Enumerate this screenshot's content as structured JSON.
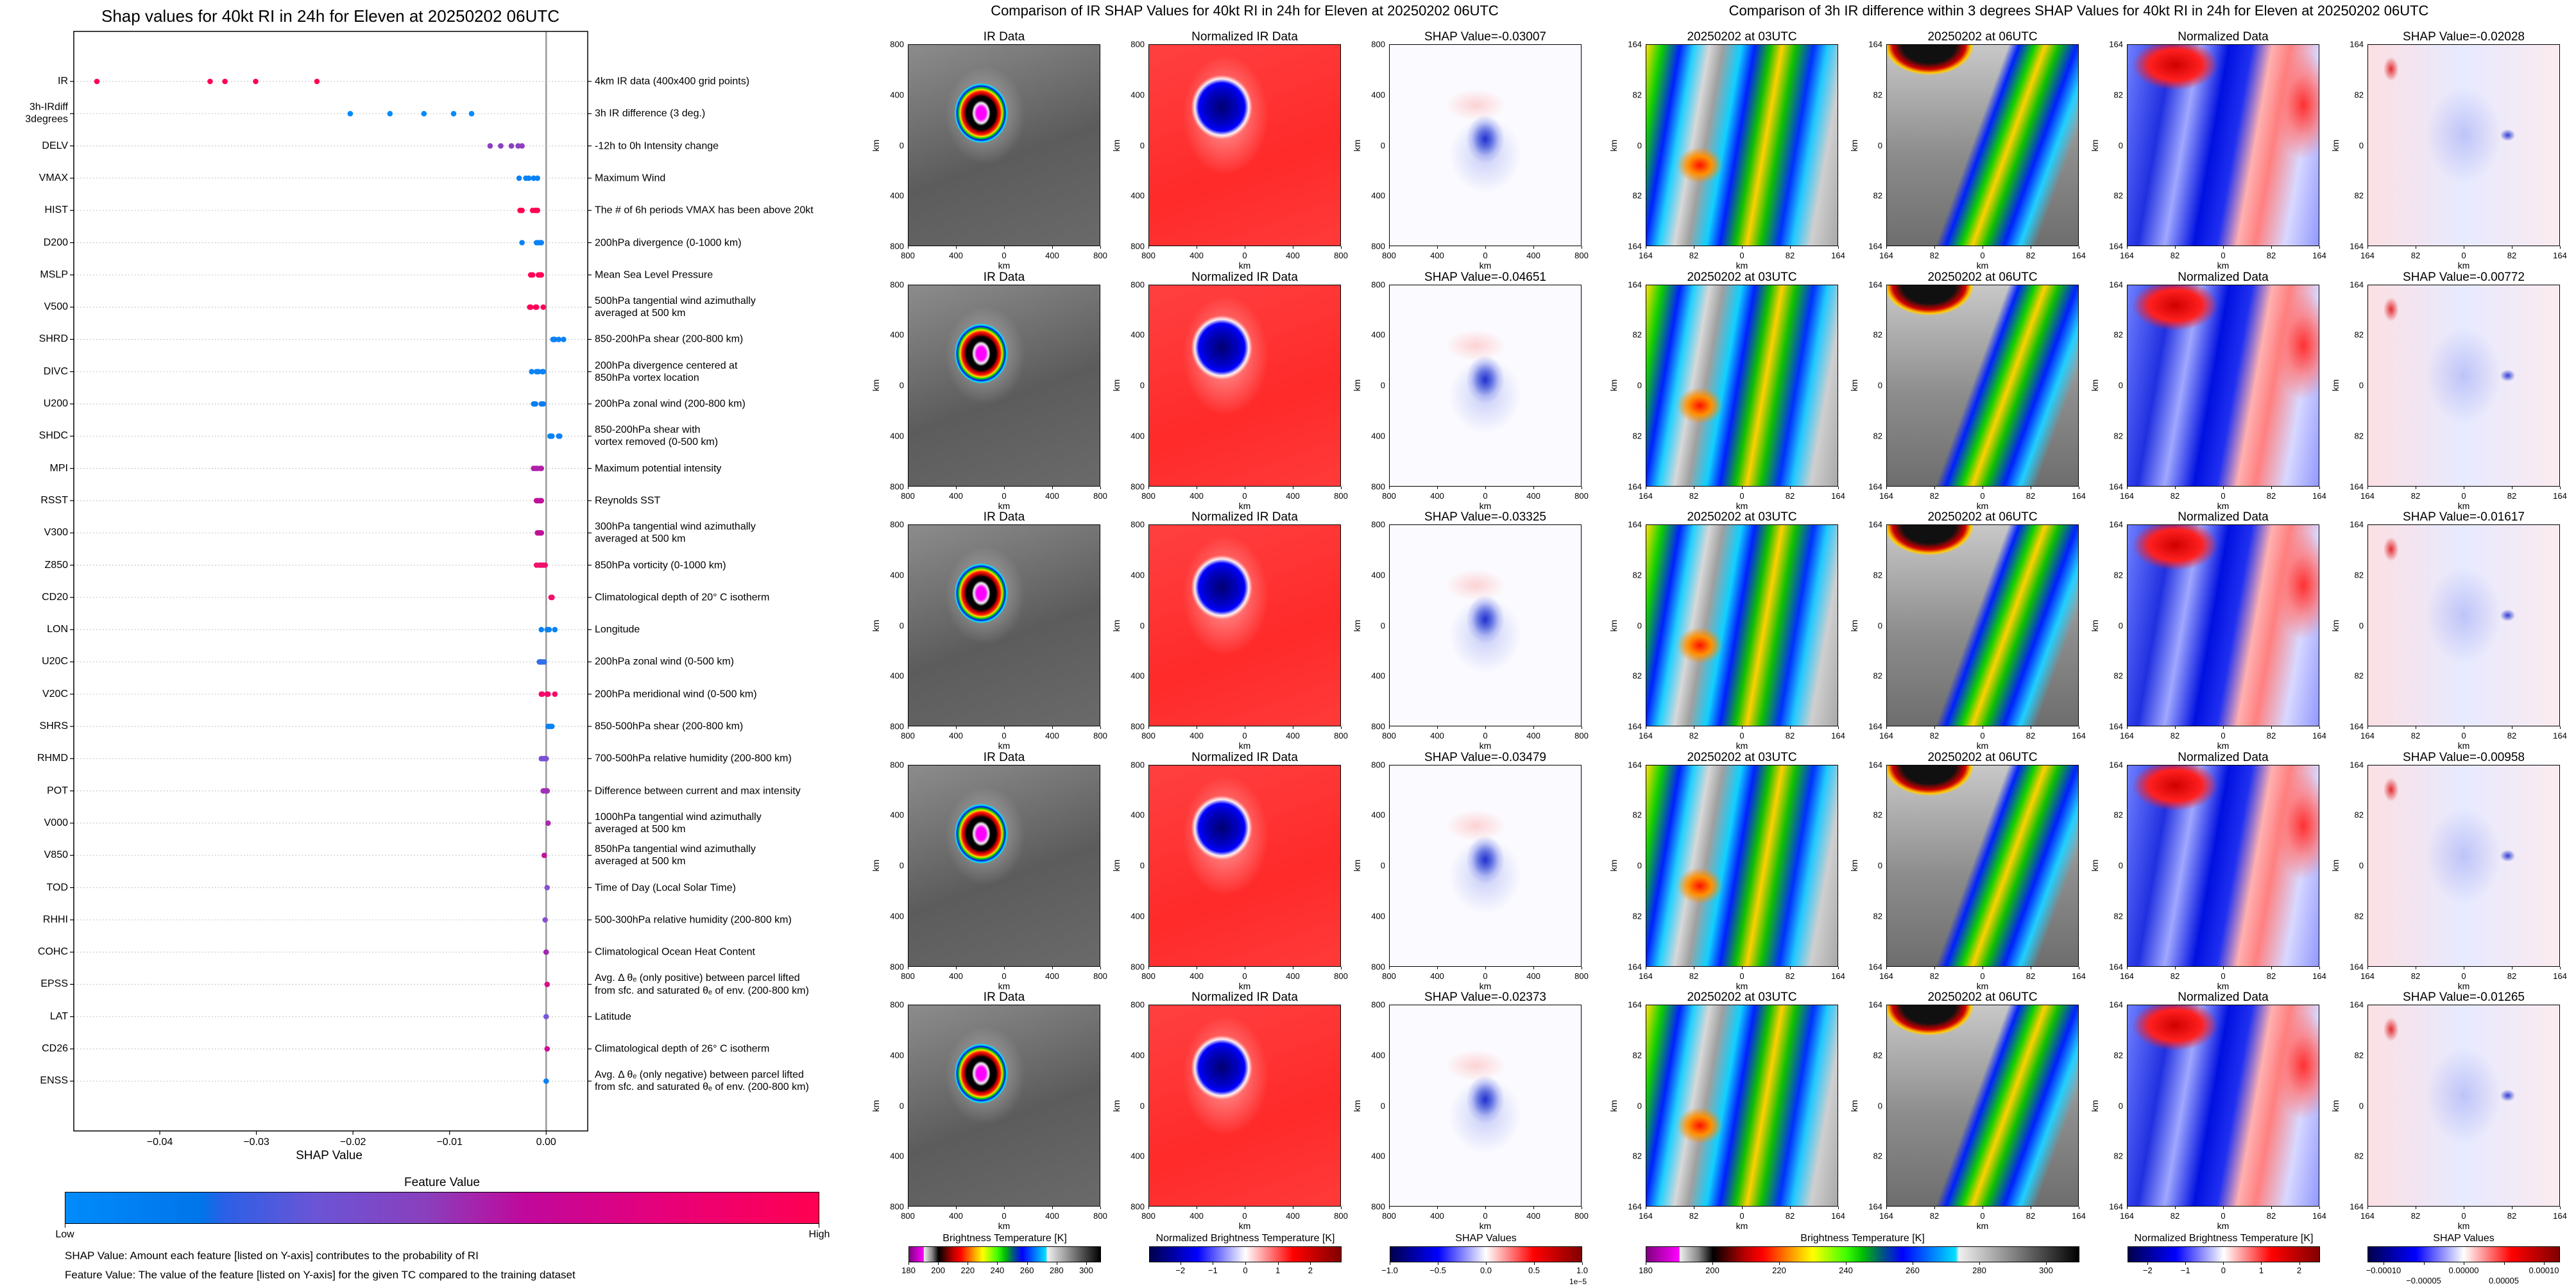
{
  "chart_data": {
    "type": "scatter",
    "title": "Shap values for 40kt RI in 24h for Eleven at 20250202 06UTC",
    "xlabel": "SHAP Value",
    "xlim": [
      -0.0489,
      0.0043
    ],
    "xticks": [
      -0.04,
      -0.03,
      -0.02,
      -0.01,
      0.0
    ],
    "xtick_labels": [
      "−0.04",
      "−0.03",
      "−0.02",
      "−0.01",
      "0.00"
    ],
    "grid": "dotted horizontal per feature",
    "zero_line": 0.0,
    "features": [
      {
        "name": "IR",
        "description": "4km IR data (400x400 grid points)",
        "color": "#ff0052",
        "values": [
          -0.04651,
          -0.03479,
          -0.03325,
          -0.03007,
          -0.02373
        ]
      },
      {
        "name": "3h-IRdiff\n3degrees",
        "description": "3h IR difference (3 deg.)",
        "color": "#008bfb",
        "values": [
          -0.02028,
          -0.01617,
          -0.01265,
          -0.00958,
          -0.00772
        ]
      },
      {
        "name": "DELV",
        "description": "-12h to 0h Intensity change",
        "color": "#8b3fc0",
        "values": [
          -0.0058,
          -0.0047,
          -0.0036,
          -0.0029,
          -0.0025
        ]
      },
      {
        "name": "VMAX",
        "description": "Maximum Wind",
        "color": "#0a82f5",
        "values": [
          -0.0028,
          -0.0021,
          -0.0018,
          -0.0013,
          -0.0009
        ]
      },
      {
        "name": "HIST",
        "description": "The # of 6h periods VMAX has been above 20kt",
        "color": "#ff0052",
        "values": [
          -0.0027,
          -0.0025,
          -0.0014,
          -0.0011,
          -0.0009
        ]
      },
      {
        "name": "D200",
        "description": "200hPa divergence (0-1000 km)",
        "color": "#0a82f5",
        "values": [
          -0.0025,
          -0.001,
          -0.0008,
          -0.0006,
          -0.0005
        ]
      },
      {
        "name": "MSLP",
        "description": "Mean Sea Level Pressure",
        "color": "#ff0056",
        "values": [
          -0.0016,
          -0.0014,
          -0.0008,
          -0.0006,
          -0.0005
        ]
      },
      {
        "name": "V500",
        "description": "500hPa tangential wind azimuthally\naveraged at 500 km",
        "color": "#ff0058",
        "values": [
          -0.0017,
          -0.0016,
          -0.0011,
          -0.001,
          -0.0003
        ]
      },
      {
        "name": "SHRD",
        "description": "850-200hPa shear (200-800 km)",
        "color": "#0a82f5",
        "values": [
          0.0007,
          0.0008,
          0.0009,
          0.0013,
          0.0018
        ]
      },
      {
        "name": "DIVC",
        "description": "200hPa divergence centered at\n850hPa vortex location",
        "color": "#0a82f5",
        "values": [
          -0.0015,
          -0.001,
          -0.0008,
          -0.0004,
          -0.0003
        ]
      },
      {
        "name": "U200",
        "description": "200hPa zonal wind (200-800 km)",
        "color": "#0a7ef0",
        "values": [
          -0.0013,
          -0.0012,
          -0.0011,
          -0.0005,
          -0.0003
        ]
      },
      {
        "name": "SHDC",
        "description": "850-200hPa shear with\nvortex removed (0-500 km)",
        "color": "#0a82f5",
        "values": [
          0.0004,
          0.0005,
          0.0006,
          0.0013,
          0.0014
        ]
      },
      {
        "name": "MPI",
        "description": "Maximum potential intensity",
        "color": "#b01fa8",
        "values": [
          -0.0013,
          -0.0011,
          -0.0009,
          -0.0006,
          -0.0005
        ]
      },
      {
        "name": "RSST",
        "description": "Reynolds SST",
        "color": "#c0109a",
        "values": [
          -0.001,
          -0.0009,
          -0.0007,
          -0.0006,
          -0.0005
        ]
      },
      {
        "name": "V300",
        "description": "300hPa tangential wind azimuthally\naveraged at 500 km",
        "color": "#c0109a",
        "values": [
          -0.0009,
          -0.0008,
          -0.0007,
          -0.0006,
          -0.0005
        ]
      },
      {
        "name": "Z850",
        "description": "850hPa vorticity (0-1000 km)",
        "color": "#f0106a",
        "values": [
          -0.001,
          -0.0007,
          -0.0005,
          -0.0003,
          -0.0001
        ]
      },
      {
        "name": "CD20",
        "description": "Climatological depth of 20° C isotherm",
        "color": "#f0106a",
        "values": [
          0.0005,
          0.0006,
          0.0006,
          0.0006,
          0.0006
        ]
      },
      {
        "name": "LON",
        "description": "Longitude",
        "color": "#0a82f5",
        "values": [
          -0.0005,
          0.0001,
          0.0002,
          0.0003,
          0.0009
        ]
      },
      {
        "name": "U20C",
        "description": "200hPa zonal wind (0-500 km)",
        "color": "#3070e8",
        "values": [
          -0.0007,
          -0.0006,
          -0.0005,
          -0.0004,
          -0.0002
        ]
      },
      {
        "name": "V20C",
        "description": "200hPa meridional wind (0-500 km)",
        "color": "#f8086a",
        "values": [
          -0.0005,
          -0.0004,
          0.0001,
          0.0002,
          0.0009
        ]
      },
      {
        "name": "SHRS",
        "description": "850-500hPa shear (200-800 km)",
        "color": "#0a82f5",
        "values": [
          0.0002,
          0.0003,
          0.0004,
          0.0005,
          0.0006
        ]
      },
      {
        "name": "RHMD",
        "description": "700-500hPa relative humidity (200-800 km)",
        "color": "#7a50d8",
        "values": [
          -0.0005,
          -0.0003,
          -0.0002,
          -0.0001,
          0.0
        ]
      },
      {
        "name": "POT",
        "description": "Difference between current and max intensity",
        "color": "#a030b8",
        "values": [
          -0.0003,
          -0.0002,
          0.0,
          0.0001,
          0.0001
        ]
      },
      {
        "name": "V000",
        "description": "1000hPa tangential wind azimuthally\naveraged at 500 km",
        "color": "#a82ab0",
        "values": [
          0.0002
        ]
      },
      {
        "name": "V850",
        "description": "850hPa tangential wind azimuthally\naveraged at 500 km",
        "color": "#c0149a",
        "values": [
          -0.0002
        ]
      },
      {
        "name": "TOD",
        "description": "Time of Day (Local Solar Time)",
        "color": "#8850d0",
        "values": [
          0.0001
        ]
      },
      {
        "name": "RHHI",
        "description": "500-300hPa relative humidity (200-800 km)",
        "color": "#8850d0",
        "values": [
          -0.0001
        ]
      },
      {
        "name": "COHC",
        "description": "Climatological Ocean Heat Content",
        "color": "#a028b0",
        "values": [
          0.0
        ]
      },
      {
        "name": "EPSS",
        "description": "Avg. Δ θₑ (only positive) between parcel lifted\nfrom sfc. and saturated θₑ of env. (200-800 km)",
        "color": "#d80c8a",
        "values": [
          0.0001
        ]
      },
      {
        "name": "LAT",
        "description": "Latitude",
        "color": "#7858d8",
        "values": [
          0.0
        ]
      },
      {
        "name": "CD26",
        "description": "Climatological depth of 26° C isotherm",
        "color": "#d00c96",
        "values": [
          0.0001
        ]
      },
      {
        "name": "ENSS",
        "description": "Avg. Δ θₑ (only negative) between parcel lifted\nfrom sfc. and saturated θₑ of env. (200-800 km)",
        "color": "#1080f8",
        "values": [
          0.0
        ]
      }
    ],
    "colorbar": {
      "title": "Feature Value",
      "low": "Low",
      "high": "High",
      "low_color": "#008bfb",
      "high_color": "#ff0052"
    },
    "notes": [
      "SHAP Value: Amount each feature [listed on Y-axis] contributes to the probability of RI",
      "Feature Value: The value of the feature [listed on Y-axis] for the given TC compared to the training dataset"
    ]
  },
  "ir_group": {
    "suptitle": "Comparison of IR SHAP Values for 40kt RI in 24h for Eleven at 20250202 06UTC",
    "column_titles": [
      "IR Data",
      "Normalized IR Data"
    ],
    "shap_titles": [
      "SHAP Value=-0.03007",
      "SHAP Value=-0.04651",
      "SHAP Value=-0.03325",
      "SHAP Value=-0.03479",
      "SHAP Value=-0.02373"
    ],
    "tick_labels": [
      "800",
      "400",
      "0",
      "400",
      "800"
    ],
    "axis_label": "km",
    "colorbars": [
      {
        "title": "Brightness Temperature [K]",
        "cmap": "bt",
        "range": [
          180,
          310
        ],
        "ticks": [
          180,
          200,
          220,
          240,
          260,
          280,
          300
        ],
        "tick_labels": [
          "180",
          "200",
          "220",
          "240",
          "260",
          "280",
          "300"
        ]
      },
      {
        "title": "Normalized Brightness Temperature [K]",
        "cmap": "seismic",
        "range": [
          -2.96,
          2.96
        ],
        "ticks": [
          -2,
          -1,
          0,
          1,
          2
        ],
        "tick_labels": [
          "−2",
          "−1",
          "0",
          "1",
          "2"
        ]
      },
      {
        "title": "SHAP Values",
        "cmap": "seismic",
        "range": [
          -1,
          1
        ],
        "ticks": [
          -1,
          -0.5,
          0,
          0.5,
          1
        ],
        "tick_labels": [
          "−1.0",
          "−0.5",
          "0.0",
          "0.5",
          "1.0"
        ],
        "offset_label": "1e−5"
      }
    ]
  },
  "ir3h_group": {
    "suptitle": "Comparison of 3h IR difference within 3 degrees SHAP Values for 40kt RI in 24h for Eleven at 20250202 06UTC",
    "column_titles": [
      "20250202 at 03UTC",
      "20250202 at 06UTC",
      "Normalized Data"
    ],
    "shap_titles": [
      "SHAP Value=-0.02028",
      "SHAP Value=-0.00772",
      "SHAP Value=-0.01617",
      "SHAP Value=-0.00958",
      "SHAP Value=-0.01265"
    ],
    "tick_labels": [
      "164",
      "82",
      "0",
      "82",
      "164"
    ],
    "axis_label": "km",
    "colorbars": [
      {
        "title": "Brightness Temperature [K]",
        "cmap": "bt",
        "range": [
          180,
          310
        ],
        "ticks": [
          180,
          200,
          220,
          240,
          260,
          280,
          300
        ],
        "tick_labels": [
          "180",
          "200",
          "220",
          "240",
          "260",
          "280",
          "300"
        ]
      },
      {
        "title": "Normalized Brightness Temperature [K]",
        "cmap": "seismic",
        "range": [
          -2.53,
          2.55
        ],
        "ticks": [
          -2,
          -1,
          0,
          1,
          2
        ],
        "tick_labels": [
          "−2",
          "−1",
          "0",
          "1",
          "2"
        ]
      },
      {
        "title": "SHAP Values",
        "cmap": "seismic",
        "range": [
          -0.00012,
          0.00012
        ],
        "ticks": [
          -0.0001,
          -5e-05,
          0,
          5e-05,
          0.0001
        ],
        "tick_labels": [
          "−0.00010",
          "−0.00005",
          "0.00000",
          "0.00005",
          "0.00010"
        ]
      }
    ]
  }
}
